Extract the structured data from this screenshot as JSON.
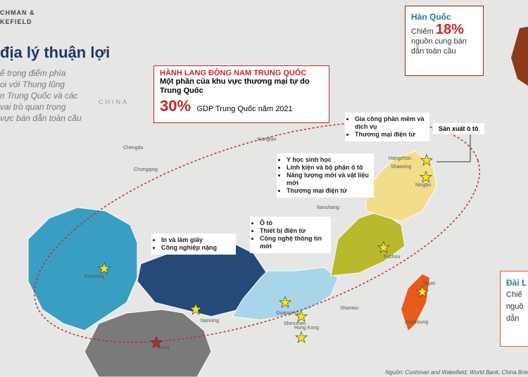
{
  "logo": [
    "CHMAN &",
    "KEFIELD"
  ],
  "heading": {
    "title": "địa lý thuận lợi",
    "lines": [
      "ế trọng điểm phía",
      "oi với Thung lũng",
      "n Trung Quốc và các",
      "vai trò quan trọng",
      "vực bán dẫn toàn cầu"
    ]
  },
  "corridor": {
    "title": "HÀNH LANG ĐÔNG NAM TRUNG QUỐC",
    "subtitle": "Một phần của khu vực thương mại tự do Trung Quốc",
    "share": "30%",
    "share_label": "GDP Trung Quốc năm 2021"
  },
  "korea": {
    "title": "Hàn Quốc",
    "prefix": "Chiếm",
    "share": "18%",
    "text": "nguồn cung bán dẫn toàn cầu"
  },
  "taiwan": {
    "title": "Đài L",
    "lines": [
      "Chiế",
      "nguồ",
      "dẫn"
    ]
  },
  "industries": {
    "zhejiang": [
      "Gia công phần mềm và dịch vụ",
      "Thương mại điện tử"
    ],
    "auto": "Sản xuất ô tô",
    "fujian": [
      "Y học sinh học",
      "Linh kiện và bộ phận ô tô",
      "Năng lượng mới và vật liệu mới",
      "Thương mại điện tử"
    ],
    "guangdong": [
      "Ô tô",
      "Thiết bị điện tử",
      "Công nghệ thông tin mới"
    ],
    "guangxi": [
      "In và làm giấy",
      "Công nghiệp nặng"
    ]
  },
  "places": [
    "CHINA",
    "Chengdu",
    "Chongqing",
    "Xiangfan",
    "Nanchang",
    "Changsha",
    "Hangzhou",
    "Shaoxing",
    "Ningbo",
    "Fuzhou",
    "Shantou",
    "Guangzhou",
    "Shenzhen",
    "Hong Kong",
    "Nanning",
    "Kunming",
    "Hanoi",
    "Taipei",
    "Kaohsiung"
  ],
  "source": "Nguồn: Cushman and Wakefield, World Bank, China Brie"
}
